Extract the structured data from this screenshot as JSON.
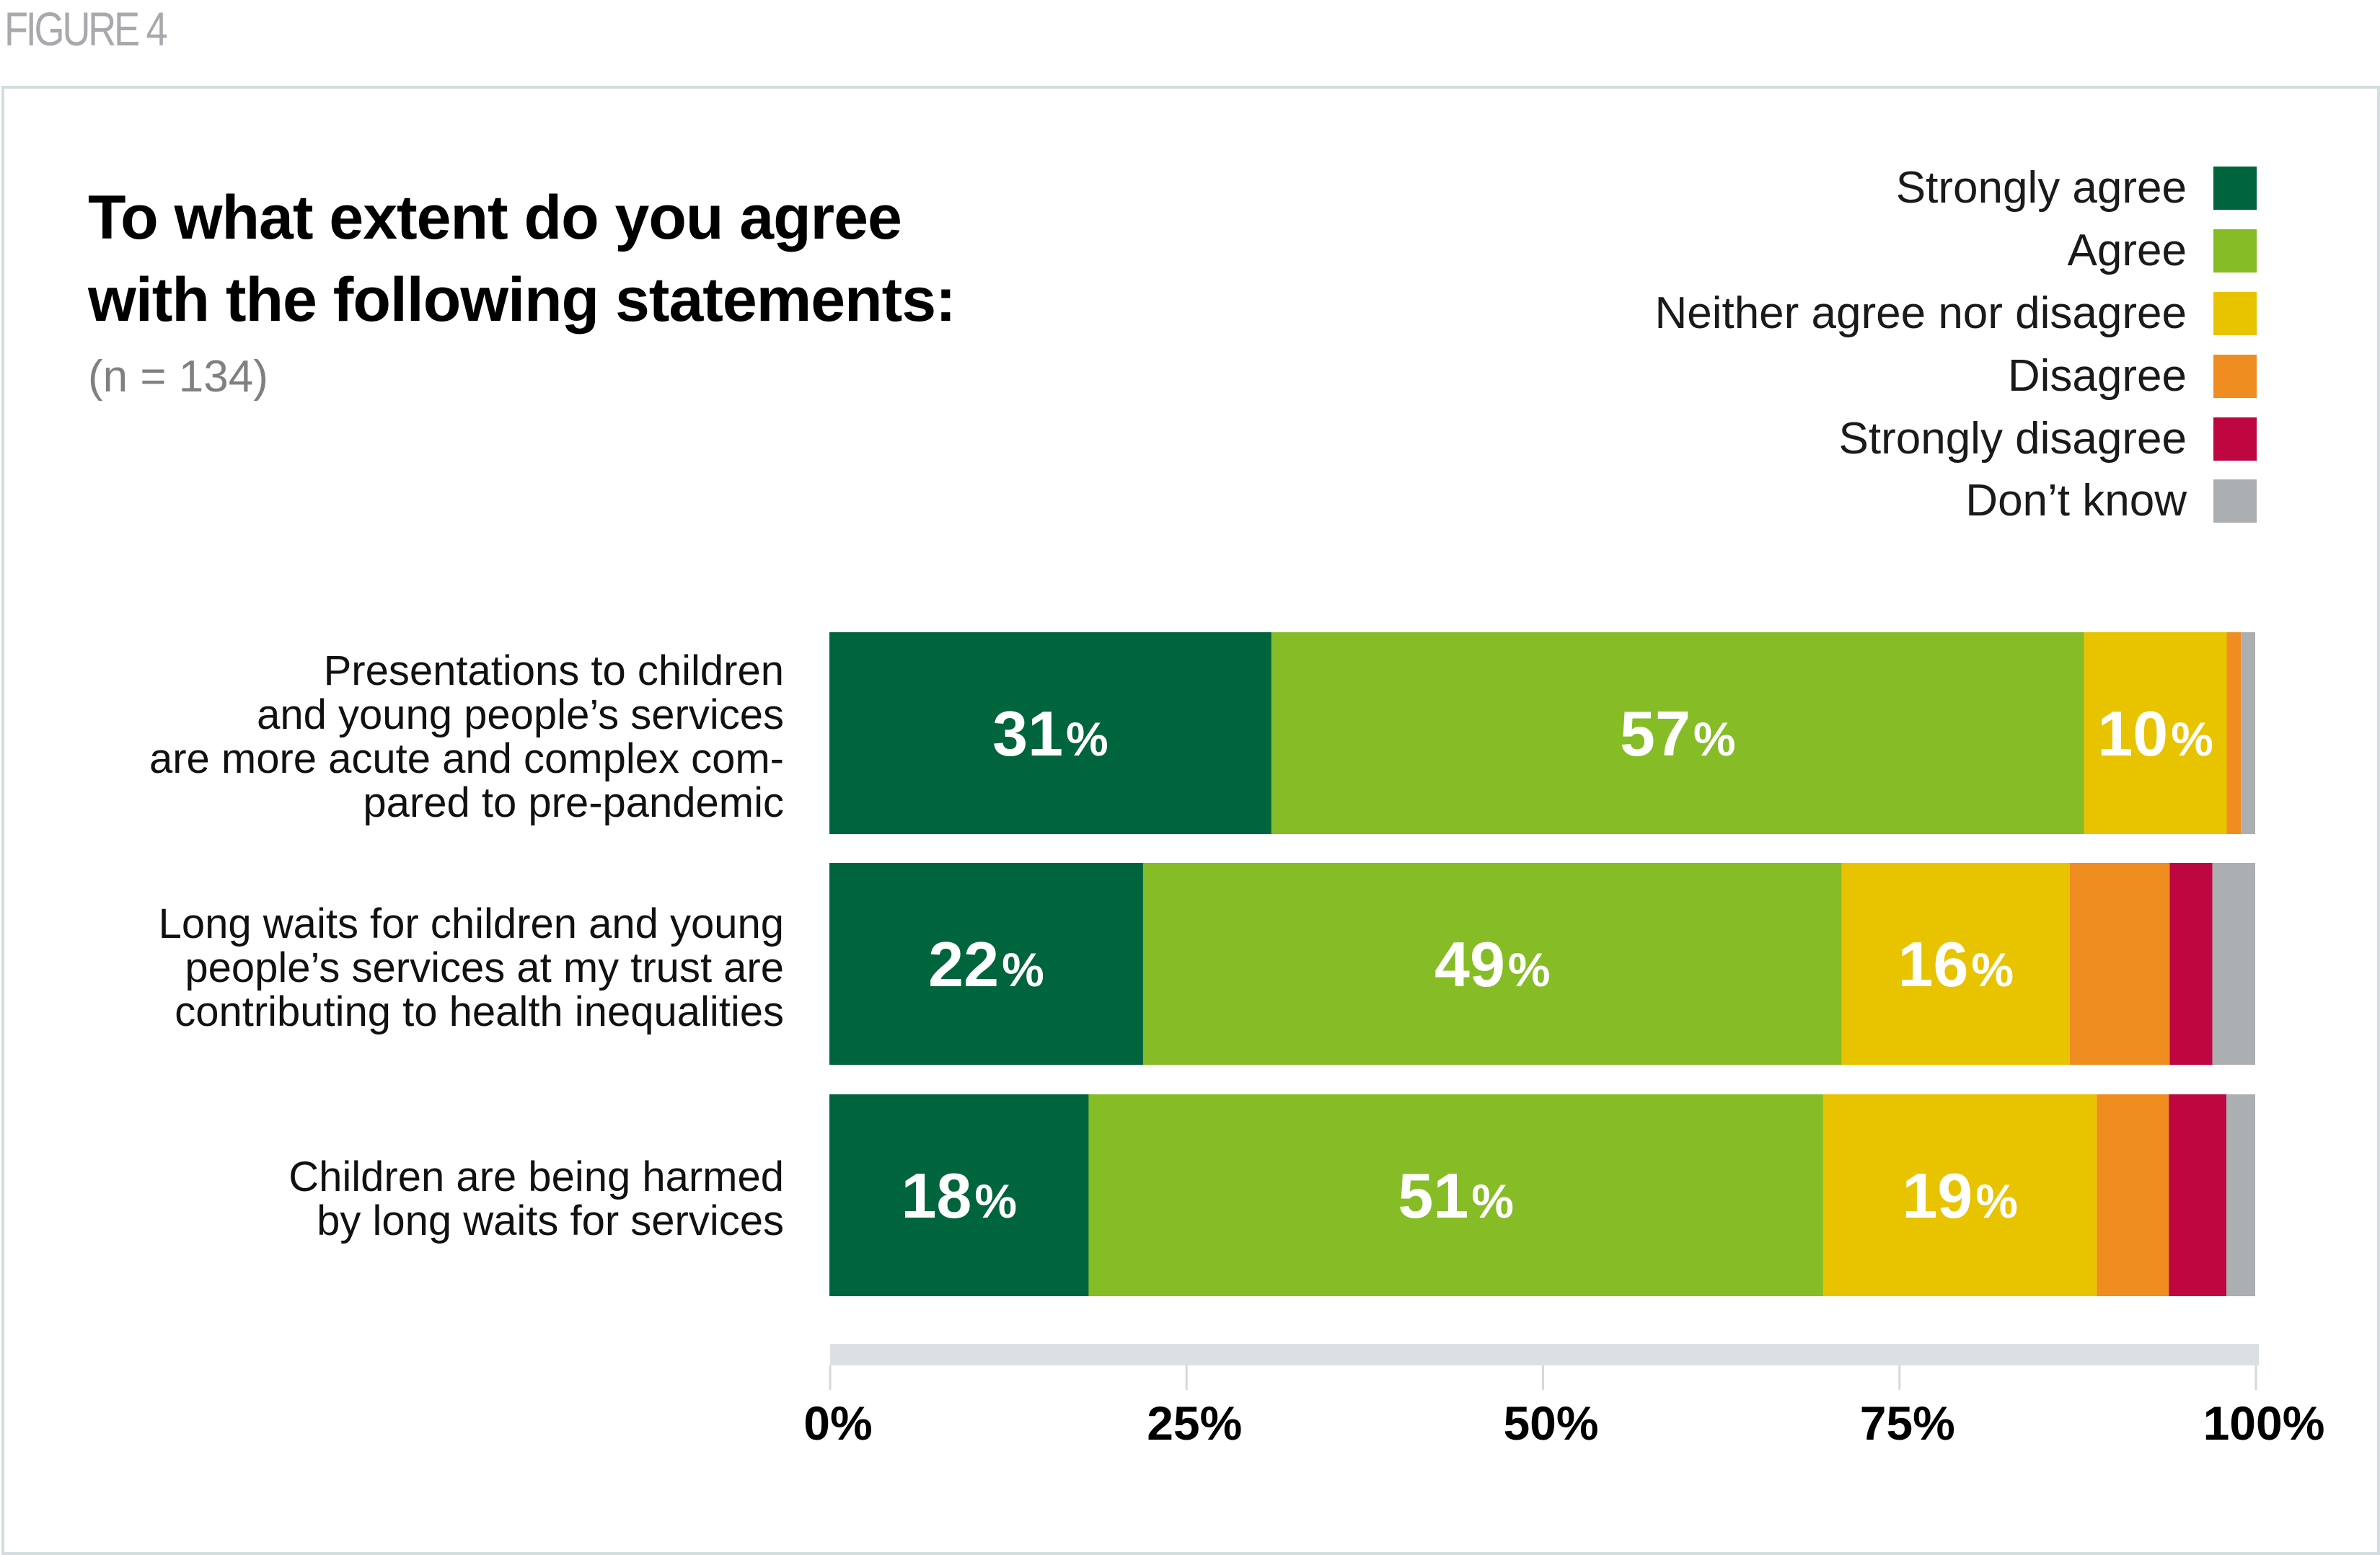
{
  "figure_label": "FIGURE 4",
  "chart_data": {
    "type": "bar",
    "orientation": "horizontal",
    "stacked": true,
    "title": "To what extent do you agree with the following statements:",
    "title_lines": [
      "To what extent do you agree",
      "with the following statements:"
    ],
    "subtitle": "(n = 134)",
    "xlabel": "",
    "ylabel": "",
    "xlim": [
      0,
      100
    ],
    "x_ticks": [
      0,
      25,
      50,
      75,
      100
    ],
    "x_tick_labels": [
      "0%",
      "25%",
      "50%",
      "75%",
      "100%"
    ],
    "legend_position": "top-right",
    "categories": [
      {
        "lines": [
          "Presentations to children",
          "and young people’s services",
          "are more acute and complex com-",
          "pared to pre-pandemic"
        ]
      },
      {
        "lines": [
          "Long waits for children and young",
          "people’s services at my trust are",
          "contributing to health inequalities"
        ]
      },
      {
        "lines": [
          "Children are being harmed",
          "by long waits for services"
        ]
      }
    ],
    "category_names": [
      "Presentations to children and young people’s services are more acute and complex compared to pre-pandemic",
      "Long waits for children and young people’s services at my trust are contributing to health inequalities",
      "Children are being harmed by long waits for services"
    ],
    "series": [
      {
        "name": "Strongly agree",
        "color": "#00643c",
        "values": [
          31,
          22,
          18
        ],
        "labels": [
          "31",
          "22",
          "18"
        ]
      },
      {
        "name": "Agree",
        "color": "#86bc25",
        "values": [
          57,
          49,
          51
        ],
        "labels": [
          "57",
          "49",
          "51"
        ]
      },
      {
        "name": "Neither agree nor disagree",
        "color": "#e8c300",
        "values": [
          10,
          16,
          19
        ],
        "labels": [
          "10",
          "16",
          "19"
        ]
      },
      {
        "name": "Disagree",
        "color": "#f08d21",
        "values": [
          1,
          7,
          5
        ],
        "labels": [
          "",
          "",
          ""
        ]
      },
      {
        "name": "Strongly disagree",
        "color": "#be0640",
        "values": [
          0,
          3,
          4
        ],
        "labels": [
          "",
          "",
          ""
        ]
      },
      {
        "name": "Don’t know",
        "color": "#abafb2",
        "values": [
          1,
          3,
          2
        ],
        "labels": [
          "",
          "",
          ""
        ]
      }
    ],
    "percent_suffix": "%",
    "axis_band_color": "#dbe1e3"
  }
}
